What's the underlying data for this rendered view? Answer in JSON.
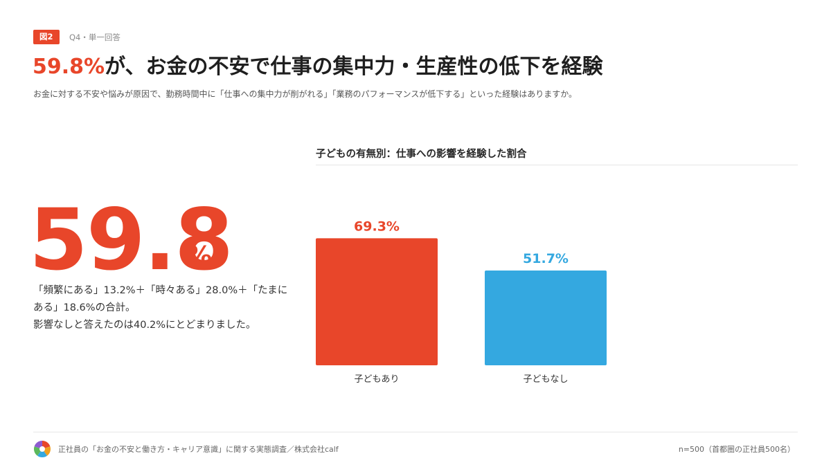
{
  "header": {
    "badge": "図2",
    "question": "Q4・単一回答",
    "headline_accent": "59.8%",
    "headline_rest": "が、お金の不安で仕事の集中力・生産性の低下を経験",
    "subtitle": "お金に対する不安や悩みが原因で、勤務時間中に「仕事への集中力が削がれる」「業務のパフォーマンスが低下する」といった経験はありますか。"
  },
  "highlight": {
    "number": "59.8",
    "unit": "%",
    "desc_line1": "「頻繁にある」13.2%＋「時々ある」28.0%＋「たまにある」18.6%の合計。",
    "desc_line2": "影響なしと答えたのは40.2%にとどまりました。"
  },
  "footer": {
    "source": "正社員の「お金の不安と働き方・キャリア意識」に関する実態調査／株式会社calf",
    "sample": "n=500（首都圏の正社員500名）"
  },
  "colors": {
    "accent": "#e8462a",
    "blue": "#34a8e0",
    "logo": [
      "#e8462a",
      "#f0a020",
      "#34a8e0",
      "#5cb85c",
      "#8e5bd0"
    ]
  },
  "chart_data": {
    "type": "bar",
    "title": "子どもの有無別：仕事への影響を経験した割合",
    "categories": [
      "子どもあり",
      "子どもなし"
    ],
    "values": [
      69.3,
      51.7
    ],
    "value_labels": [
      "69.3%",
      "51.7%"
    ],
    "colors": [
      "#e8462a",
      "#34a8e0"
    ],
    "ylim": [
      0,
      100
    ],
    "grid": false
  }
}
